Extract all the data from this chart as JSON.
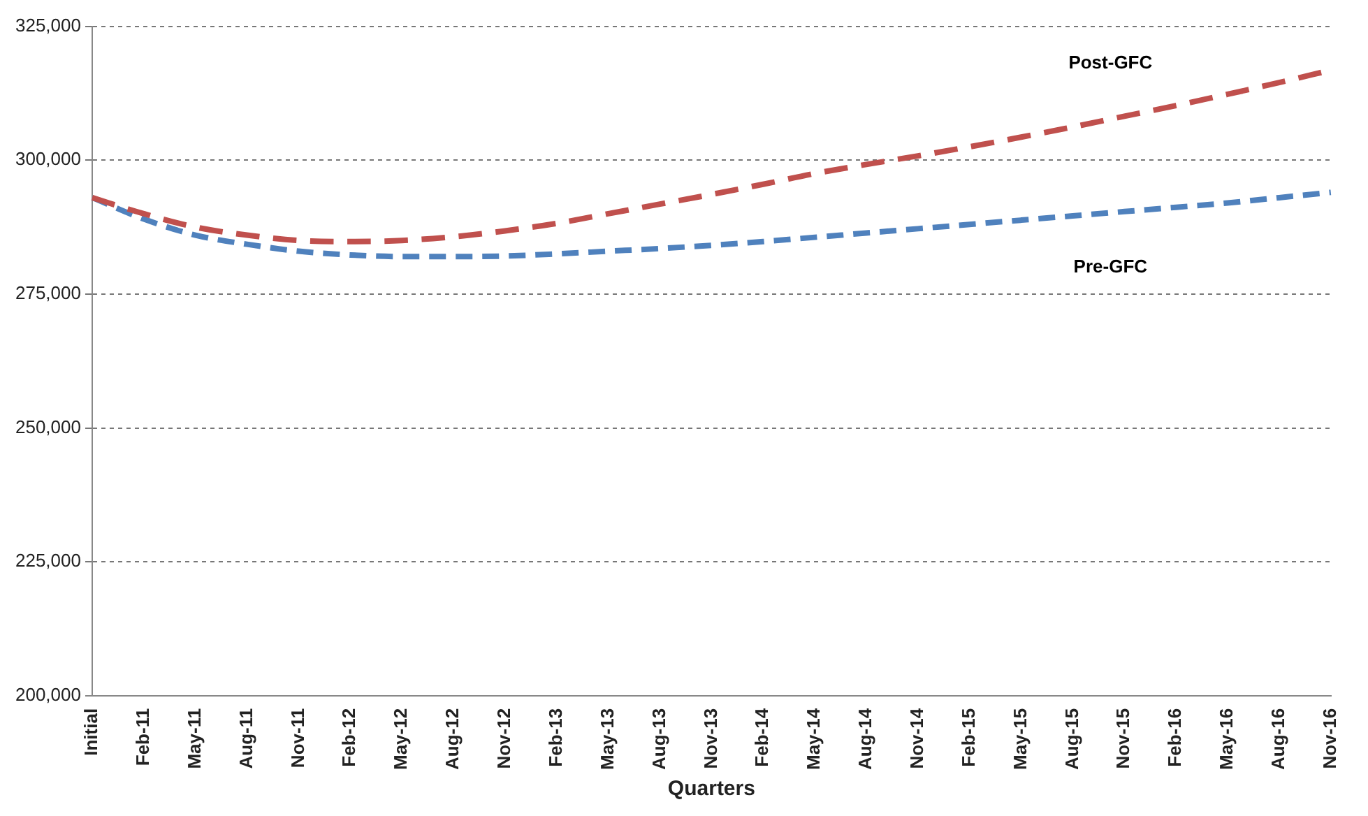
{
  "chart_data": {
    "type": "line",
    "xlabel": "Quarters",
    "categories": [
      "Initial",
      "Feb-11",
      "May-11",
      "Aug-11",
      "Nov-11",
      "Feb-12",
      "May-12",
      "Aug-12",
      "Nov-12",
      "Feb-13",
      "May-13",
      "Aug-13",
      "Nov-13",
      "Feb-14",
      "May-14",
      "Aug-14",
      "Nov-14",
      "Feb-15",
      "May-15",
      "Aug-15",
      "Nov-15",
      "Feb-16",
      "May-16",
      "Aug-16",
      "Nov-16"
    ],
    "series": [
      {
        "name": "Post-GFC",
        "color": "#c0504d",
        "values": [
          293000,
          290000,
          287500,
          286000,
          285000,
          284800,
          285000,
          285700,
          286800,
          288200,
          290000,
          291800,
          293600,
          295500,
          297500,
          299200,
          300800,
          302500,
          304300,
          306200,
          308200,
          310200,
          312300,
          314500,
          316800
        ]
      },
      {
        "name": "Pre-GFC",
        "color": "#4f81bd",
        "values": [
          293000,
          289000,
          286000,
          284300,
          283000,
          282300,
          282000,
          282000,
          282100,
          282500,
          283000,
          283500,
          284100,
          284800,
          285600,
          286400,
          287200,
          288000,
          288800,
          289600,
          290400,
          291200,
          292000,
          293000,
          294000
        ]
      }
    ],
    "ylim": [
      200000,
      325000
    ],
    "yticks": [
      {
        "value": 200000,
        "label": "200,000"
      },
      {
        "value": 225000,
        "label": "225,000"
      },
      {
        "value": 250000,
        "label": "250,000"
      },
      {
        "value": 275000,
        "label": "275,000"
      },
      {
        "value": 300000,
        "label": "300,000"
      },
      {
        "value": 325000,
        "label": "325,000"
      }
    ],
    "grid": "y",
    "legend": false,
    "marker": "none",
    "line_style": "dashed"
  }
}
